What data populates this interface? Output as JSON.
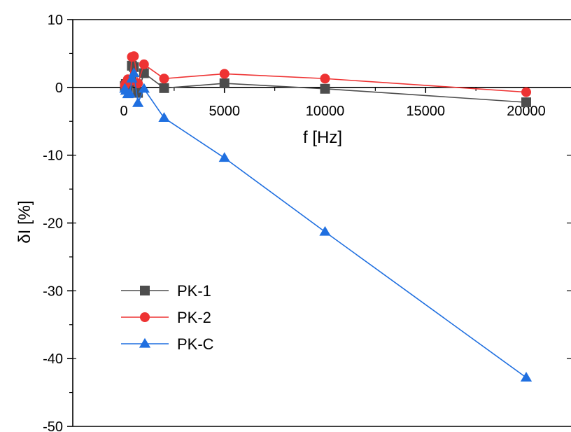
{
  "chart_data": {
    "type": "line",
    "title": "",
    "xlabel": "f [Hz]",
    "ylabel": "δI [%]",
    "xlim": [
      -2500,
      21800
    ],
    "ylim": [
      -50,
      10
    ],
    "x_ticks": [
      0,
      5000,
      10000,
      15000,
      20000
    ],
    "x_tick_labels": [
      "0",
      "5000",
      "10000",
      "15000",
      "20000"
    ],
    "y_ticks": [
      10,
      0,
      -10,
      -20,
      -30,
      -40,
      -50
    ],
    "y_tick_labels": [
      "10",
      "0",
      "-10",
      "-20",
      "-30",
      "-40",
      "-50"
    ],
    "grid": false,
    "legend_position": "bottom-left",
    "series": [
      {
        "name": "PK-1",
        "color": "#4d4d4d",
        "marker": "square",
        "x": [
          50,
          100,
          200,
          300,
          400,
          500,
          700,
          1000,
          2000,
          5000,
          10000,
          20000
        ],
        "y": [
          0.2,
          0.5,
          -0.3,
          0.8,
          3.2,
          3.0,
          -0.8,
          2.1,
          -0.1,
          0.6,
          -0.2,
          -2.2
        ]
      },
      {
        "name": "PK-2",
        "color": "#ee3333",
        "marker": "circle",
        "x": [
          50,
          100,
          200,
          300,
          400,
          500,
          700,
          1000,
          2000,
          5000,
          10000,
          20000
        ],
        "y": [
          0.3,
          0.6,
          1.2,
          0.9,
          4.5,
          4.6,
          0.6,
          3.4,
          1.3,
          2.0,
          1.3,
          -0.7
        ]
      },
      {
        "name": "PK-C",
        "color": "#1f6fe0",
        "marker": "triangle",
        "x": [
          50,
          100,
          200,
          300,
          400,
          500,
          700,
          1000,
          2000,
          5000,
          10000,
          20000
        ],
        "y": [
          -0.2,
          -0.5,
          -1.0,
          -0.9,
          1.3,
          2.1,
          -2.3,
          -0.2,
          -4.5,
          -10.4,
          -21.3,
          -42.8
        ]
      }
    ]
  }
}
